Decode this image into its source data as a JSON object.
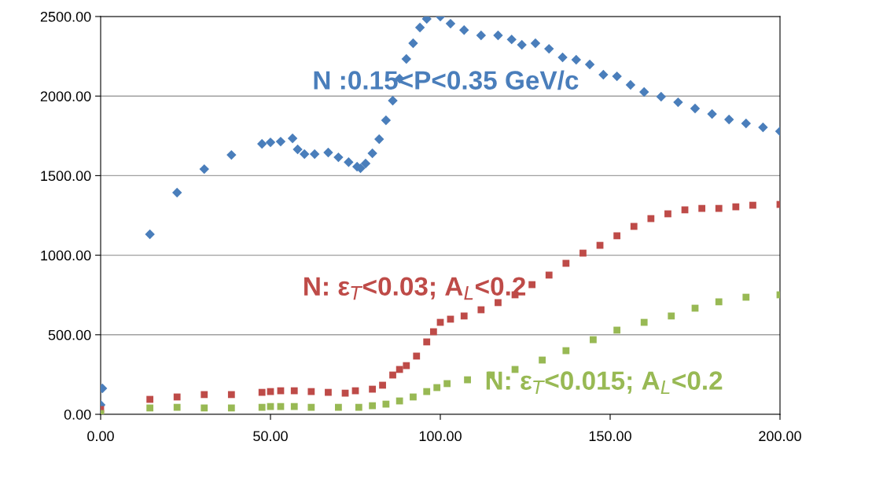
{
  "chart_data": {
    "type": "scatter",
    "xlim": [
      0,
      200
    ],
    "ylim": [
      0,
      2500
    ],
    "xticks": [
      {
        "value": 0,
        "label": "0.00"
      },
      {
        "value": 50,
        "label": "50.00"
      },
      {
        "value": 100,
        "label": "100.00"
      },
      {
        "value": 150,
        "label": "150.00"
      },
      {
        "value": 200,
        "label": "200.00"
      }
    ],
    "yticks": [
      {
        "value": 0,
        "label": "0.00"
      },
      {
        "value": 500,
        "label": "500.00"
      },
      {
        "value": 1000,
        "label": "1000.00"
      },
      {
        "value": 1500,
        "label": "1500.00"
      },
      {
        "value": 2000,
        "label": "2000.00"
      },
      {
        "value": 2500,
        "label": "2500.00"
      }
    ],
    "grid": "y",
    "legend": false,
    "series": [
      {
        "name": "N :0.15<P<0.35 GeV/c",
        "color": "#4a7ebb",
        "marker": "diamond",
        "x": [
          0,
          0.5,
          14.5,
          22.5,
          30.5,
          38.5,
          47.5,
          50,
          53,
          56.5,
          58,
          60,
          63,
          67,
          70,
          73,
          75.5,
          76.5,
          78,
          80,
          82,
          84,
          86,
          88,
          90,
          92,
          94,
          96,
          100,
          103,
          107,
          112,
          117,
          121,
          124,
          128,
          132,
          136,
          140,
          144,
          148,
          152,
          156,
          160,
          165,
          170,
          175,
          180,
          185,
          190,
          195,
          200
        ],
        "values": [
          59,
          163,
          1131,
          1393,
          1541,
          1630,
          1700,
          1709,
          1714,
          1734,
          1665,
          1635,
          1635,
          1645,
          1615,
          1585,
          1556,
          1546,
          1576,
          1640,
          1729,
          1848,
          1971,
          2110,
          2233,
          2332,
          2431,
          2485,
          2500,
          2455,
          2415,
          2381,
          2381,
          2356,
          2322,
          2332,
          2297,
          2243,
          2228,
          2199,
          2134,
          2124,
          2070,
          2026,
          1996,
          1961,
          1922,
          1887,
          1853,
          1828,
          1803,
          1779
        ]
      },
      {
        "name": "N: ε$_{T}$<0.03; A$_{L}$<0.2",
        "color": "#be4b48",
        "marker": "square",
        "x": [
          0,
          14.5,
          22.5,
          30.5,
          38.5,
          47.5,
          50,
          53,
          57,
          62,
          67,
          72,
          75,
          80,
          83,
          86,
          88,
          90,
          93,
          96,
          98,
          100,
          103,
          107,
          112,
          117,
          122,
          127,
          132,
          137,
          142,
          147,
          152,
          157,
          162,
          167,
          172,
          177,
          182,
          187,
          192,
          200
        ],
        "values": [
          30,
          94,
          109,
          124,
          124,
          138,
          143,
          148,
          148,
          143,
          138,
          133,
          148,
          158,
          183,
          247,
          282,
          306,
          366,
          455,
          519,
          578,
          598,
          618,
          657,
          702,
          751,
          815,
          875,
          949,
          1013,
          1062,
          1122,
          1181,
          1230,
          1260,
          1285,
          1294,
          1294,
          1304,
          1314,
          1319
        ]
      },
      {
        "name": "N: ε$_{T}$<0.015; A$_{L}$<0.2",
        "color": "#98b954",
        "marker": "square",
        "x": [
          0,
          14.5,
          22.5,
          30.5,
          38.5,
          47.5,
          50,
          53,
          57,
          62,
          70,
          76,
          80,
          84,
          88,
          92,
          96,
          99,
          102,
          108,
          115,
          122,
          130,
          137,
          145,
          152,
          160,
          168,
          175,
          182,
          190,
          200
        ],
        "values": [
          5,
          40,
          44,
          40,
          40,
          44,
          49,
          49,
          49,
          44,
          44,
          44,
          54,
          64,
          84,
          109,
          143,
          168,
          193,
          217,
          247,
          282,
          341,
          400,
          469,
          529,
          578,
          618,
          667,
          707,
          736,
          751
        ]
      }
    ]
  }
}
